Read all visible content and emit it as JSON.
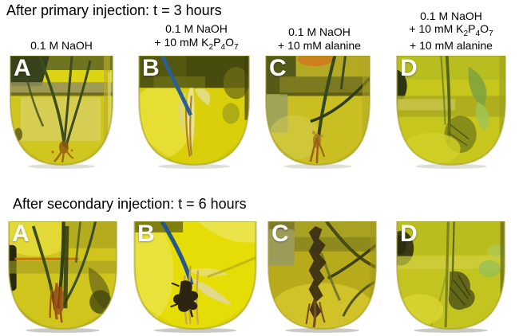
{
  "figure": {
    "rows": [
      {
        "title": "After primary injection: t = 3 hours",
        "panels": [
          {
            "letter": "A",
            "condition": "0.1 M NaOH"
          },
          {
            "letter": "B",
            "condition": "0.1 M NaOH + 10 mM K2P4O7"
          },
          {
            "letter": "C",
            "condition": "0.1 M NaOH + 10 mM alanine"
          },
          {
            "letter": "D",
            "condition": "0.1 M NaOH + 10 mM K2P4O7 + 10 mM alanine"
          }
        ]
      },
      {
        "title": "After secondary injection: t = 6 hours",
        "panels": [
          {
            "letter": "A",
            "condition": "0.1 M NaOH"
          },
          {
            "letter": "B",
            "condition": "0.1 M NaOH + 10 mM K2P4O7"
          },
          {
            "letter": "C",
            "condition": "0.1 M NaOH + 10 mM alanine"
          },
          {
            "letter": "D",
            "condition": "0.1 M NaOH + 10 mM K2P4O7 + 10 mM alanine"
          }
        ]
      }
    ],
    "columns": [
      {
        "label_lines": [
          "0.1 M NaOH"
        ]
      },
      {
        "label_lines": [
          "0.1 M NaOH",
          "+ 10 mM K_2P_4O_7"
        ]
      },
      {
        "label_lines": [
          "0.1 M NaOH",
          "+ 10 mM alanine"
        ]
      },
      {
        "label_lines": [
          "0.1 M NaOH",
          "+ 10 mM K_2P_4O_7",
          "+ 10 mM alanine"
        ]
      }
    ],
    "palette": {
      "liquid_yellow": "#cfc61f",
      "bright_yellow": "#e6dc06",
      "olive_band": "#7d7d22",
      "dark_olive": "#37411a",
      "stem_green": "#3c4c1c",
      "root_brown": "#9a6212",
      "wire_blue": "#2b5f93",
      "panel_letter": "#ffffff",
      "text": "#000000",
      "background": "#ffffff"
    }
  }
}
